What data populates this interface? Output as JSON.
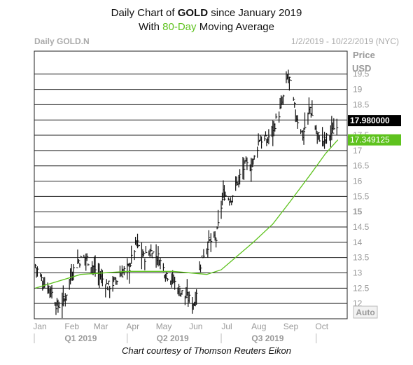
{
  "header": {
    "line1_pre": "Daily Chart of ",
    "line1_bold": "GOLD",
    "line1_post": " since January 2019",
    "line2_pre": "With ",
    "line2_accent": "80-Day",
    "line2_post": " Moving Average"
  },
  "panel": {
    "symbol_label": "Daily GOLD.N",
    "range_label": "1/2/2019 - 10/22/2019 (NYC)",
    "price_label": "Price",
    "currency_label": "USD",
    "auto_label": "Auto",
    "last_price": "17.980000",
    "ma_value": "17.349125"
  },
  "caption": "Chart courtesy of Thomson Reuters Eikon",
  "colors": {
    "moving_average": "#5ec21e",
    "price_bars": "#111111",
    "grid": "#222222",
    "last_price_box": "#000000",
    "ma_box": "#5ec21e"
  },
  "chart_data": {
    "type": "ohlc",
    "title": "Daily Chart of GOLD since January 2019",
    "subtitle": "With 80-Day Moving Average",
    "ylabel": "Price USD",
    "ylim": [
      11.5,
      20.25
    ],
    "y_ticks": [
      "12",
      "12.5",
      "13",
      "13.5",
      "14",
      "14.5",
      "15",
      "15.5",
      "16",
      "16.5",
      "17",
      "17.5",
      "18",
      "18.5",
      "19",
      "19.5"
    ],
    "x_tick_labels": [
      "Jan",
      "Feb",
      "Mar",
      "Apr",
      "May",
      "Jun",
      "Jul",
      "Aug",
      "Sep",
      "Oct"
    ],
    "quarter_labels": [
      "Q1 2019",
      "Q2 2019",
      "Q3 2019"
    ],
    "price_series": {
      "name": "GOLD",
      "points": [
        [
          "2019-01-02",
          13.25
        ],
        [
          "2019-01-09",
          12.7
        ],
        [
          "2019-01-16",
          12.5
        ],
        [
          "2019-01-23",
          11.9
        ],
        [
          "2019-01-30",
          12.1
        ],
        [
          "2019-02-06",
          13.0
        ],
        [
          "2019-02-13",
          13.4
        ],
        [
          "2019-02-20",
          13.5
        ],
        [
          "2019-02-27",
          13.2
        ],
        [
          "2019-03-06",
          12.9
        ],
        [
          "2019-03-13",
          12.55
        ],
        [
          "2019-03-20",
          12.7
        ],
        [
          "2019-03-27",
          13.0
        ],
        [
          "2019-04-03",
          13.2
        ],
        [
          "2019-04-10",
          14.0
        ],
        [
          "2019-04-17",
          13.5
        ],
        [
          "2019-04-24",
          13.7
        ],
        [
          "2019-05-01",
          13.5
        ],
        [
          "2019-05-08",
          13.0
        ],
        [
          "2019-05-15",
          12.8
        ],
        [
          "2019-05-22",
          12.4
        ],
        [
          "2019-05-29",
          12.2
        ],
        [
          "2019-06-05",
          12.0
        ],
        [
          "2019-06-12",
          13.5
        ],
        [
          "2019-06-19",
          14.0
        ],
        [
          "2019-06-26",
          14.1
        ],
        [
          "2019-07-03",
          15.6
        ],
        [
          "2019-07-10",
          15.4
        ],
        [
          "2019-07-17",
          16.0
        ],
        [
          "2019-07-24",
          16.5
        ],
        [
          "2019-07-31",
          16.5
        ],
        [
          "2019-08-07",
          17.4
        ],
        [
          "2019-08-14",
          17.3
        ],
        [
          "2019-08-21",
          17.8
        ],
        [
          "2019-08-28",
          18.4
        ],
        [
          "2019-09-04",
          19.5
        ],
        [
          "2019-09-11",
          18.2
        ],
        [
          "2019-09-18",
          17.5
        ],
        [
          "2019-09-25",
          18.4
        ],
        [
          "2019-10-02",
          17.5
        ],
        [
          "2019-10-09",
          17.3
        ],
        [
          "2019-10-16",
          17.6
        ],
        [
          "2019-10-22",
          17.98
        ]
      ]
    },
    "moving_average_series": {
      "name": "80-Day",
      "points": [
        [
          "2019-01-02",
          12.5
        ],
        [
          "2019-02-15",
          12.95
        ],
        [
          "2019-04-01",
          13.05
        ],
        [
          "2019-05-15",
          13.05
        ],
        [
          "2019-06-17",
          12.95
        ],
        [
          "2019-07-01",
          13.1
        ],
        [
          "2019-08-01",
          14.0
        ],
        [
          "2019-08-20",
          14.6
        ],
        [
          "2019-09-05",
          15.3
        ],
        [
          "2019-09-25",
          16.2
        ],
        [
          "2019-10-10",
          16.9
        ],
        [
          "2019-10-22",
          17.35
        ]
      ]
    }
  }
}
